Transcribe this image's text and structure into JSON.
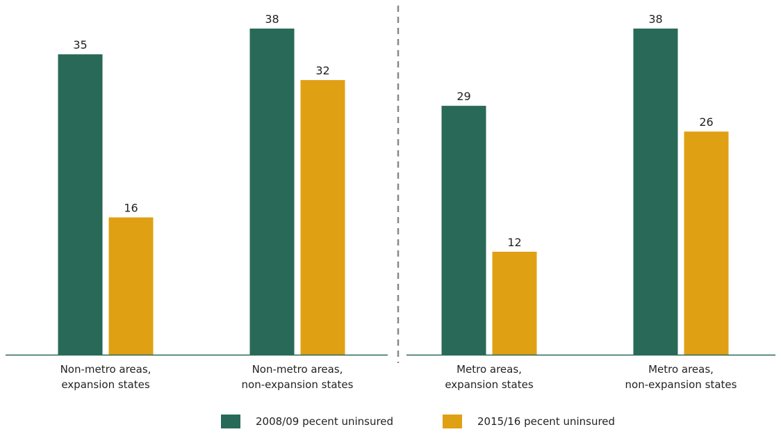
{
  "chart_data": {
    "type": "bar",
    "title": "",
    "xlabel": "",
    "ylabel": "",
    "ylim": [
      0,
      40
    ],
    "grid": false,
    "legend_position": "bottom",
    "categories": [
      [
        "Non-metro areas,",
        "expansion states"
      ],
      [
        "Non-metro areas,",
        "non-expansion states"
      ],
      [
        "Metro areas,",
        "expansion states"
      ],
      [
        "Metro areas,",
        "non-expansion states"
      ]
    ],
    "series": [
      {
        "name": "2008/09 pecent uninsured",
        "values": [
          35,
          38,
          29,
          38
        ]
      },
      {
        "name": "2015/16 pecent uninsured",
        "values": [
          16,
          32,
          12,
          26
        ]
      }
    ],
    "colors": {
      "series_0": "#286958",
      "series_1": "#E0A014",
      "baseline": "#286958",
      "divider": "#888888",
      "text": "#222222"
    },
    "divider_after_category": 1
  }
}
